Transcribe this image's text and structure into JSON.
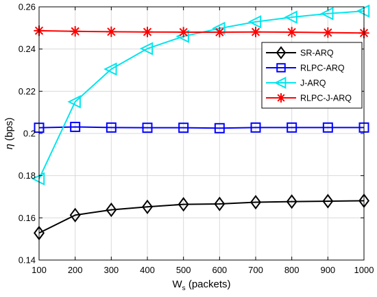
{
  "chart_data": {
    "type": "line",
    "xlabel_main": "W",
    "xlabel_sub": "s",
    "xlabel_rest": " (packets)",
    "ylabel_symbol": "η",
    "ylabel_rest": " (bps)",
    "xlim": [
      100,
      1000
    ],
    "ylim": [
      0.14,
      0.26
    ],
    "x_ticks": [
      100,
      200,
      300,
      400,
      500,
      600,
      700,
      800,
      900,
      1000
    ],
    "y_ticks": [
      0.14,
      0.16,
      0.18,
      0.2,
      0.22,
      0.24,
      0.26
    ],
    "y_tick_labels": [
      "0.14",
      "0.16",
      "0.18",
      "0.2",
      "0.22",
      "0.24",
      "0.26"
    ],
    "grid": true,
    "legend_position": "top-right",
    "x": [
      100,
      200,
      300,
      400,
      500,
      600,
      700,
      800,
      900,
      1000
    ],
    "series": [
      {
        "name": "SR-ARQ",
        "color": "#000000",
        "marker": "diamond",
        "values": [
          0.1528,
          0.1613,
          0.1638,
          0.1652,
          0.1664,
          0.1666,
          0.1674,
          0.1677,
          0.1679,
          0.1681
        ]
      },
      {
        "name": "RLPC-ARQ",
        "color": "#0000ff",
        "marker": "square",
        "values": [
          0.2027,
          0.2031,
          0.2028,
          0.2027,
          0.2027,
          0.2025,
          0.2028,
          0.2028,
          0.2028,
          0.2028
        ]
      },
      {
        "name": "J-ARQ",
        "color": "#00e5ee",
        "marker": "triangle-left",
        "values": [
          0.1785,
          0.215,
          0.2305,
          0.2402,
          0.246,
          0.2498,
          0.2529,
          0.2551,
          0.2568,
          0.258
        ]
      },
      {
        "name": "RLPC-J-ARQ",
        "color": "#ff0000",
        "marker": "asterisk",
        "values": [
          0.2487,
          0.2484,
          0.2482,
          0.2481,
          0.248,
          0.248,
          0.2481,
          0.248,
          0.2478,
          0.2476
        ]
      }
    ]
  }
}
